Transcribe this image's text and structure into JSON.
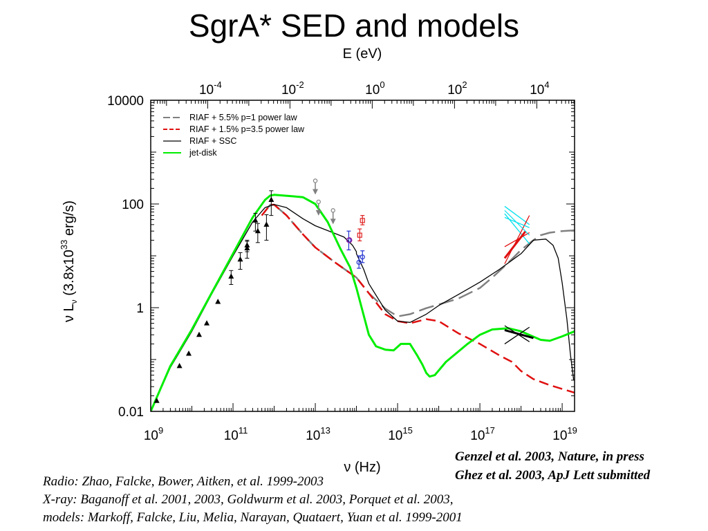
{
  "title": "SgrA* SED and models",
  "citations": {
    "right_line1": "Genzel et al. 2003, Nature, in press",
    "right_line2": "Ghez et al. 2003, ApJ Lett submitted",
    "left_line1": "Radio: Zhao, Falcke, Bower, Aitken, et al. 1999-2003",
    "left_line2": "X-ray: Baganoff et al. 2001, 2003, Goldwurm et al. 2003, Porquet et al. 2003,",
    "left_line3": "models: Markoff, Falcke, Liu, Melia, Narayan, Quataert, Yuan et al. 1999-2001"
  },
  "chart_data": {
    "type": "line",
    "x_scale": "log",
    "y_scale": "log",
    "xlim": [
      1000000000.0,
      2e+19
    ],
    "ylim": [
      0.01,
      10000
    ],
    "xlabel": "ν (Hz)",
    "top_xlabel": "E (eV)",
    "ylabel_parts": [
      "ν L",
      "ν",
      " (3.8x10",
      "33",
      " erg/s)"
    ],
    "x_ticks": [
      {
        "base": "10",
        "exp": "9",
        "value": 1000000000.0
      },
      {
        "base": "10",
        "exp": "11",
        "value": 100000000000.0
      },
      {
        "base": "10",
        "exp": "13",
        "value": 10000000000000.0
      },
      {
        "base": "10",
        "exp": "15",
        "value": 1000000000000000.0
      },
      {
        "base": "10",
        "exp": "17",
        "value": 1e+17
      },
      {
        "base": "10",
        "exp": "19",
        "value": 1e+19
      }
    ],
    "top_ticks": [
      {
        "base": "10",
        "exp": "-4",
        "value": 0.0001
      },
      {
        "base": "10",
        "exp": "-2",
        "value": 0.01
      },
      {
        "base": "10",
        "exp": "0",
        "value": 1
      },
      {
        "base": "10",
        "exp": "2",
        "value": 100
      },
      {
        "base": "10",
        "exp": "4",
        "value": 10000
      }
    ],
    "y_ticks": [
      {
        "label": "10000",
        "value": 10000
      },
      {
        "label": "100",
        "value": 100
      },
      {
        "label": "1",
        "value": 1
      },
      {
        "label": "0.01",
        "value": 0.01
      }
    ],
    "legend_position": "top-left",
    "series": [
      {
        "name": "RIAF + 5.5% p=1 power law",
        "color": "#808080",
        "dash": "22,8",
        "width": 2.5,
        "points": [
          [
            500000000000.0,
            60
          ],
          [
            800000000000.0,
            96
          ],
          [
            1000000000000.0,
            97
          ],
          [
            2000000000000.0,
            60
          ],
          [
            5000000000000.0,
            26
          ],
          [
            10000000000000.0,
            14.5
          ],
          [
            30000000000000.0,
            7.5
          ],
          [
            100000000000000.0,
            3.8
          ],
          [
            200000000000000.0,
            1.9
          ],
          [
            500000000000000.0,
            0.96
          ],
          [
            1000000000000000.0,
            0.68
          ],
          [
            2000000000000000.0,
            0.75
          ],
          [
            5000000000000000.0,
            0.98
          ],
          [
            1e+16,
            1.15
          ],
          [
            3e+16,
            1.5
          ],
          [
            1e+17,
            2.4
          ],
          [
            2e+17,
            3.8
          ],
          [
            5e+17,
            7.5
          ],
          [
            1e+18,
            13
          ],
          [
            2e+18,
            20
          ],
          [
            3e+18,
            25
          ],
          [
            5e+18,
            28
          ],
          [
            1e+19,
            30
          ],
          [
            2e+19,
            31
          ]
        ]
      },
      {
        "name": "RIAF + 1.5% p=3.5 power law",
        "color": "#e01010",
        "dash": "14,7",
        "width": 2.5,
        "points": [
          [
            500000000000.0,
            60
          ],
          [
            800000000000.0,
            96
          ],
          [
            1000000000000.0,
            97
          ],
          [
            2000000000000.0,
            60
          ],
          [
            5000000000000.0,
            26
          ],
          [
            10000000000000.0,
            14.5
          ],
          [
            30000000000000.0,
            7.5
          ],
          [
            100000000000000.0,
            3.8
          ],
          [
            200000000000000.0,
            1.9
          ],
          [
            500000000000000.0,
            0.75
          ],
          [
            1000000000000000.0,
            0.55
          ],
          [
            2000000000000000.0,
            0.5
          ],
          [
            5000000000000000.0,
            0.6
          ],
          [
            1e+16,
            0.55
          ],
          [
            3e+16,
            0.32
          ],
          [
            1e+17,
            0.2
          ],
          [
            3e+17,
            0.12
          ],
          [
            6e+17,
            0.09
          ],
          [
            1e+18,
            0.06
          ],
          [
            2e+18,
            0.042
          ],
          [
            5e+18,
            0.032
          ],
          [
            1e+19,
            0.027
          ],
          [
            2e+19,
            0.023
          ]
        ]
      },
      {
        "name": "RIAF + SSC",
        "color": "#000000",
        "dash": "",
        "width": 1.3,
        "points": [
          [
            1000000000.0,
            0.01
          ],
          [
            3000000000.0,
            0.07
          ],
          [
            10000000000.0,
            0.35
          ],
          [
            30000000000.0,
            1.8
          ],
          [
            100000000000.0,
            10
          ],
          [
            300000000000.0,
            45
          ],
          [
            600000000000.0,
            85
          ],
          [
            1000000000000.0,
            98
          ],
          [
            2000000000000.0,
            85
          ],
          [
            5000000000000.0,
            52
          ],
          [
            10000000000000.0,
            38
          ],
          [
            30000000000000.0,
            27
          ],
          [
            50000000000000.0,
            23
          ],
          [
            80000000000000.0,
            16
          ],
          [
            100000000000000.0,
            12
          ],
          [
            100000000000000.0,
            11
          ],
          [
            150000000000000.0,
            5.5
          ],
          [
            200000000000000.0,
            2.9
          ],
          [
            500000000000000.0,
            0.9
          ],
          [
            1000000000000000.0,
            0.55
          ],
          [
            2000000000000000.0,
            0.52
          ],
          [
            5000000000000000.0,
            0.75
          ],
          [
            1e+16,
            1.1
          ],
          [
            3e+16,
            1.8
          ],
          [
            1e+17,
            3.1
          ],
          [
            3e+17,
            5.5
          ],
          [
            1e+18,
            11
          ],
          [
            2e+18,
            20
          ],
          [
            4e+18,
            21
          ],
          [
            6e+18,
            16
          ],
          [
            8e+18,
            9
          ],
          [
            1e+19,
            3
          ],
          [
            1.3e+19,
            0.6
          ],
          [
            1.6e+19,
            0.12
          ],
          [
            1.9e+19,
            0.04
          ]
        ]
      },
      {
        "name": "jet-disk",
        "color": "#00ee00",
        "dash": "",
        "width": 3,
        "points": [
          [
            1000000000.0,
            0.01
          ],
          [
            3000000000.0,
            0.075
          ],
          [
            10000000000.0,
            0.38
          ],
          [
            30000000000.0,
            1.9
          ],
          [
            100000000000.0,
            11
          ],
          [
            300000000000.0,
            55
          ],
          [
            600000000000.0,
            120
          ],
          [
            800000000000.0,
            145
          ],
          [
            1000000000000.0,
            150
          ],
          [
            3000000000000.0,
            140
          ],
          [
            5000000000000.0,
            135
          ],
          [
            10000000000000.0,
            100
          ],
          [
            20000000000000.0,
            45
          ],
          [
            40000000000000.0,
            14
          ],
          [
            70000000000000.0,
            6
          ],
          [
            100000000000000.0,
            2.4
          ],
          [
            200000000000000.0,
            0.3
          ],
          [
            300000000000000.0,
            0.18
          ],
          [
            500000000000000.0,
            0.155
          ],
          [
            800000000000000.0,
            0.15
          ],
          [
            1200000000000000.0,
            0.2
          ],
          [
            2000000000000000.0,
            0.2
          ],
          [
            3000000000000000.0,
            0.12
          ],
          [
            4000000000000000.0,
            0.08
          ],
          [
            5000000000000000.0,
            0.055
          ],
          [
            6000000000000000.0,
            0.047
          ],
          [
            8000000000000000.0,
            0.05
          ],
          [
            1.5e+16,
            0.09
          ],
          [
            5e+16,
            0.2
          ],
          [
            1e+17,
            0.3
          ],
          [
            2e+17,
            0.38
          ],
          [
            5e+17,
            0.4
          ],
          [
            1e+18,
            0.35
          ],
          [
            3e+18,
            0.24
          ],
          [
            5e+18,
            0.23
          ],
          [
            1e+19,
            0.28
          ],
          [
            2e+19,
            0.35
          ]
        ]
      }
    ],
    "radio_points": [
      {
        "x": 1400000000.0,
        "y": 0.016
      },
      {
        "x": 5000000000.0,
        "y": 0.075
      },
      {
        "x": 8400000000.0,
        "y": 0.13
      },
      {
        "x": 15000000000.0,
        "y": 0.3
      },
      {
        "x": 23000000000.0,
        "y": 0.5
      },
      {
        "x": 43000000000.0,
        "y": 1.3
      },
      {
        "x": 90000000000.0,
        "y": 4,
        "err": 1.2
      },
      {
        "x": 150000000000.0,
        "y": 8.5,
        "err": 3
      },
      {
        "x": 220000000000.0,
        "y": 14,
        "err": 5
      },
      {
        "x": 220000000000.0,
        "y": 16,
        "err": 4
      },
      {
        "x": 350000000000.0,
        "y": 48,
        "err": 18
      },
      {
        "x": 400000000000.0,
        "y": 30,
        "err": 12
      },
      {
        "x": 650000000000.0,
        "y": 40,
        "err": 22
      },
      {
        "x": 850000000000.0,
        "y": 120,
        "err": 60
      }
    ],
    "upper_limits": [
      {
        "x": 10000000000000.0,
        "y": 280
      },
      {
        "x": 12000000000000.0,
        "y": 110
      },
      {
        "x": 27000000000000.0,
        "y": 75
      }
    ],
    "red_points": [
      {
        "x": 120000000000000.0,
        "y": 25,
        "err": 8
      },
      {
        "x": 140000000000000.0,
        "y": 48,
        "err": 12
      }
    ],
    "blue_points": [
      {
        "x": 65000000000000.0,
        "y": 20,
        "err": 10
      },
      {
        "x": 115000000000000.0,
        "y": 7.5,
        "err": 2.5
      },
      {
        "x": 140000000000000.0,
        "y": 9.5,
        "err": 3
      }
    ],
    "purple_point": {
      "x": 67000000000000.0,
      "y": 20
    },
    "xray_bowties": [
      {
        "color": "#00e0ee",
        "x1": 4e+17,
        "x2": 1.6e+18,
        "y1a": 65,
        "y2a": 17,
        "y1b": 90,
        "y2b": 40
      },
      {
        "color": "#e01010",
        "x1": 4e+17,
        "x2": 1.6e+18,
        "y1a": 15,
        "y2a": 28,
        "y1b": 7,
        "y2b": 60
      },
      {
        "color": "#000000",
        "x1": 4e+17,
        "x2": 1.6e+18,
        "y1a": 0.45,
        "y2a": 0.22,
        "y1b": 0.2,
        "y2b": 0.42
      }
    ]
  }
}
